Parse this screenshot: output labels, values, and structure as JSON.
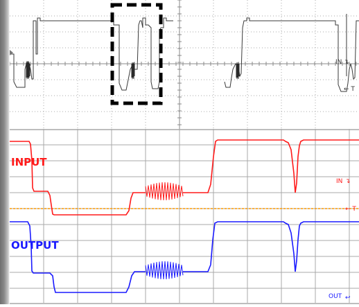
{
  "top_panel": {
    "label_in": "IN",
    "label_t": "← T",
    "colors": {
      "trace": "#3a3a3a",
      "grid": "#9a9a9a",
      "selection": "#000000"
    }
  },
  "bottom_panel": {
    "title_input": "INPUT",
    "title_output": "OUTPUT",
    "label_in": "IN",
    "label_t": "← T",
    "label_out": "OUT",
    "colors": {
      "input": "#ff1a1a",
      "output": "#1a1aff",
      "grid": "#a8a8a8",
      "trigger": "#ff9a00"
    }
  }
}
